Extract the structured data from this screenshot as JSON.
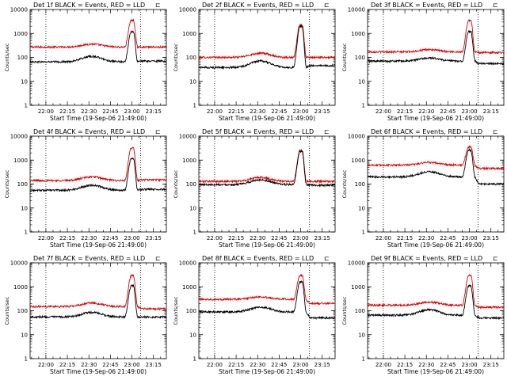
{
  "page": {
    "colors": {
      "events": "#000000",
      "lld": "#dd0000",
      "axis": "#000000",
      "background": "#ffffff"
    }
  },
  "chart_data": [
    {
      "type": "line",
      "title": "Det 1f BLACK = Events, RED = LLD",
      "corner_mark": "⊏",
      "xlabel": "Start Time (19-Sep-06 21:49:00)",
      "ylabel": "Counts/sec",
      "xlim": [
        "21:49",
        "23:24"
      ],
      "ylim": [
        1,
        10000
      ],
      "yscale": "log",
      "x_ticks": [
        "22:00",
        "22:15",
        "22:30",
        "22:45",
        "23:00",
        "23:15"
      ],
      "y_ticks": [
        "1",
        "10",
        "100",
        "1000",
        "10000"
      ],
      "vlines": [
        "22:00",
        "23:06"
      ],
      "peak_time": "23:00",
      "series": [
        {
          "name": "LLD",
          "color": "#dd0000",
          "baseline": 270,
          "hump": 360,
          "peak": 3500,
          "end": 270
        },
        {
          "name": "Events",
          "color": "#000000",
          "baseline": 65,
          "hump": 110,
          "peak": 1200,
          "end": 70
        }
      ]
    },
    {
      "type": "line",
      "title": "Det 2f BLACK = Events, RED = LLD",
      "corner_mark": "⊏",
      "xlabel": "Start Time (19-Sep-06 21:49:00)",
      "ylabel": "Counts/sec",
      "xlim": [
        "21:49",
        "23:24"
      ],
      "ylim": [
        1,
        10000
      ],
      "yscale": "log",
      "x_ticks": [
        "22:00",
        "22:15",
        "22:30",
        "22:45",
        "23:00",
        "23:15"
      ],
      "y_ticks": [
        "1",
        "10",
        "100",
        "1000",
        "10000"
      ],
      "vlines": [
        "22:00",
        "23:06"
      ],
      "peak_time": "23:00",
      "series": [
        {
          "name": "LLD",
          "color": "#dd0000",
          "baseline": 100,
          "hump": 150,
          "peak": 2300,
          "end": 100
        },
        {
          "name": "Events",
          "color": "#000000",
          "baseline": 38,
          "hump": 70,
          "peak": 2000,
          "end": 45
        }
      ]
    },
    {
      "type": "line",
      "title": "Det 3f BLACK = Events, RED = LLD",
      "corner_mark": "⊏",
      "xlabel": "Start Time (19-Sep-06 21:49:00)",
      "ylabel": "Counts/sec",
      "xlim": [
        "21:49",
        "23:24"
      ],
      "ylim": [
        1,
        10000
      ],
      "yscale": "log",
      "x_ticks": [
        "22:00",
        "22:15",
        "22:30",
        "22:45",
        "23:00",
        "23:15"
      ],
      "y_ticks": [
        "1",
        "10",
        "100",
        "1000",
        "10000"
      ],
      "vlines": [
        "22:00",
        "23:06"
      ],
      "peak_time": "23:00",
      "series": [
        {
          "name": "LLD",
          "color": "#dd0000",
          "baseline": 170,
          "hump": 210,
          "peak": 3500,
          "end": 160
        },
        {
          "name": "Events",
          "color": "#000000",
          "baseline": 70,
          "hump": 95,
          "peak": 1200,
          "end": 55
        }
      ]
    },
    {
      "type": "line",
      "title": "Det 4f BLACK = Events, RED = LLD",
      "corner_mark": "⊏",
      "xlabel": "Start Time (19-Sep-06 21:49:00)",
      "ylabel": "Counts/sec",
      "xlim": [
        "21:49",
        "23:24"
      ],
      "ylim": [
        1,
        10000
      ],
      "yscale": "log",
      "x_ticks": [
        "22:00",
        "22:15",
        "22:30",
        "22:45",
        "23:00",
        "23:15"
      ],
      "y_ticks": [
        "1",
        "10",
        "100",
        "1000",
        "10000"
      ],
      "vlines": [
        "22:00",
        "23:06"
      ],
      "peak_time": "23:00",
      "series": [
        {
          "name": "LLD",
          "color": "#dd0000",
          "baseline": 140,
          "hump": 200,
          "peak": 3200,
          "end": 150
        },
        {
          "name": "Events",
          "color": "#000000",
          "baseline": 55,
          "hump": 90,
          "peak": 1200,
          "end": 60
        }
      ]
    },
    {
      "type": "line",
      "title": "Det 5f BLACK = Events, RED = LLD",
      "corner_mark": "⊏",
      "xlabel": "Start Time (19-Sep-06 21:49:00)",
      "ylabel": "Counts/sec",
      "xlim": [
        "21:49",
        "23:24"
      ],
      "ylim": [
        1,
        10000
      ],
      "yscale": "log",
      "x_ticks": [
        "22:00",
        "22:15",
        "22:30",
        "22:45",
        "23:00",
        "23:15"
      ],
      "y_ticks": [
        "1",
        "10",
        "100",
        "1000",
        "10000"
      ],
      "vlines": [
        "22:00",
        "23:06"
      ],
      "peak_time": "23:00",
      "series": [
        {
          "name": "LLD",
          "color": "#dd0000",
          "baseline": 130,
          "hump": 190,
          "peak": 2600,
          "end": 130
        },
        {
          "name": "Events",
          "color": "#000000",
          "baseline": 95,
          "hump": 150,
          "peak": 2300,
          "end": 90
        }
      ]
    },
    {
      "type": "line",
      "title": "Det 6f BLACK = Events, RED = LLD",
      "corner_mark": "⊏",
      "xlabel": "Start Time (19-Sep-06 21:49:00)",
      "ylabel": "Counts/sec",
      "xlim": [
        "21:49",
        "23:24"
      ],
      "ylim": [
        1,
        10000
      ],
      "yscale": "log",
      "x_ticks": [
        "22:00",
        "22:15",
        "22:30",
        "22:45",
        "23:00",
        "23:15"
      ],
      "y_ticks": [
        "1",
        "10",
        "100",
        "1000",
        "10000"
      ],
      "vlines": [
        "22:00",
        "23:06"
      ],
      "peak_time": "23:00",
      "series": [
        {
          "name": "LLD",
          "color": "#dd0000",
          "baseline": 620,
          "hump": 800,
          "peak": 3500,
          "end": 450
        },
        {
          "name": "Events",
          "color": "#000000",
          "baseline": 200,
          "hump": 330,
          "peak": 2600,
          "end": 100
        }
      ]
    },
    {
      "type": "line",
      "title": "Det 7f BLACK = Events, RED = LLD",
      "corner_mark": "⊏",
      "xlabel": "Start Time (19-Sep-06 21:49:00)",
      "ylabel": "Counts/sec",
      "xlim": [
        "21:49",
        "23:24"
      ],
      "ylim": [
        1,
        10000
      ],
      "yscale": "log",
      "x_ticks": [
        "22:00",
        "22:15",
        "22:30",
        "22:45",
        "23:00",
        "23:15"
      ],
      "y_ticks": [
        "1",
        "10",
        "100",
        "1000",
        "10000"
      ],
      "vlines": [
        "22:00",
        "23:06"
      ],
      "peak_time": "23:00",
      "series": [
        {
          "name": "LLD",
          "color": "#dd0000",
          "baseline": 150,
          "hump": 210,
          "peak": 3000,
          "end": 120
        },
        {
          "name": "Events",
          "color": "#000000",
          "baseline": 55,
          "hump": 85,
          "peak": 1100,
          "end": 55
        }
      ]
    },
    {
      "type": "line",
      "title": "Det 8f BLACK = Events, RED = LLD",
      "corner_mark": "⊏",
      "xlabel": "Start Time (19-Sep-06 21:49:00)",
      "ylabel": "Counts/sec",
      "xlim": [
        "21:49",
        "23:24"
      ],
      "ylim": [
        1,
        10000
      ],
      "yscale": "log",
      "x_ticks": [
        "22:00",
        "22:15",
        "22:30",
        "22:45",
        "23:00",
        "23:15"
      ],
      "y_ticks": [
        "1",
        "10",
        "100",
        "1000",
        "10000"
      ],
      "vlines": [
        "22:00",
        "23:06"
      ],
      "peak_time": "23:00",
      "series": [
        {
          "name": "LLD",
          "color": "#dd0000",
          "baseline": 300,
          "hump": 380,
          "peak": 3000,
          "end": 200
        },
        {
          "name": "Events",
          "color": "#000000",
          "baseline": 90,
          "hump": 140,
          "peak": 1600,
          "end": 50
        }
      ]
    },
    {
      "type": "line",
      "title": "Det 9f BLACK = Events, RED = LLD",
      "corner_mark": "⊏",
      "xlabel": "Start Time (19-Sep-06 21:49:00)",
      "ylabel": "Counts/sec",
      "xlim": [
        "21:49",
        "23:24"
      ],
      "ylim": [
        1,
        10000
      ],
      "yscale": "log",
      "x_ticks": [
        "22:00",
        "22:15",
        "22:30",
        "22:45",
        "23:00",
        "23:15"
      ],
      "y_ticks": [
        "1",
        "10",
        "100",
        "1000",
        "10000"
      ],
      "vlines": [
        "22:00",
        "23:06"
      ],
      "peak_time": "23:00",
      "series": [
        {
          "name": "LLD",
          "color": "#dd0000",
          "baseline": 170,
          "hump": 230,
          "peak": 3000,
          "end": 140
        },
        {
          "name": "Events",
          "color": "#000000",
          "baseline": 65,
          "hump": 110,
          "peak": 1100,
          "end": 50
        }
      ]
    }
  ]
}
